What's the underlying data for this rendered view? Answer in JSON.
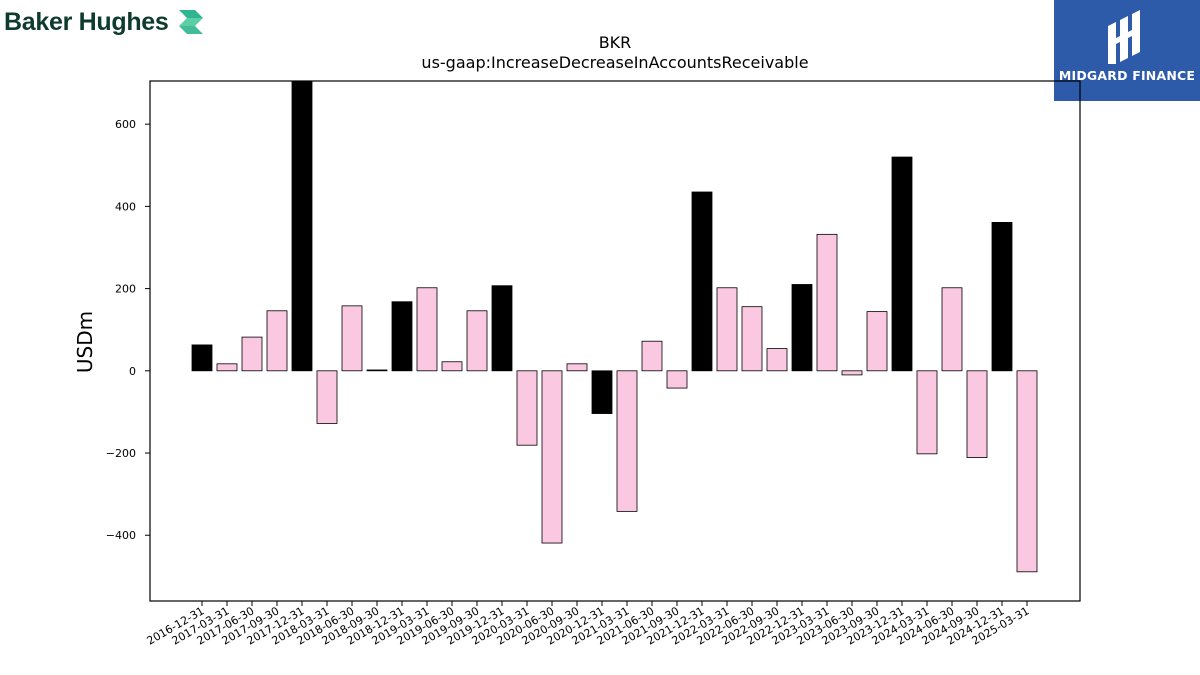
{
  "branding": {
    "company_name": "Baker Hughes",
    "partner_name": "MIDGARD FINANCE"
  },
  "chart_data": {
    "type": "bar",
    "title": "BKR",
    "subtitle": "us-gaap:IncreaseDecreaseInAccountsReceivable",
    "xlabel": "",
    "ylabel": "USDm",
    "ylim": [
      -560,
      705
    ],
    "yticks": [
      -400,
      -200,
      0,
      200,
      400,
      600
    ],
    "ytick_labels": [
      "−400",
      "−200",
      "0",
      "200",
      "400",
      "600"
    ],
    "grid": false,
    "categories": [
      "2016-12-31",
      "2017-03-31",
      "2017-06-30",
      "2017-09-30",
      "2017-12-31",
      "2018-03-31",
      "2018-06-30",
      "2018-09-30",
      "2018-12-31",
      "2019-03-31",
      "2019-06-30",
      "2019-09-30",
      "2019-12-31",
      "2020-03-31",
      "2020-06-30",
      "2020-09-30",
      "2020-12-31",
      "2021-03-31",
      "2021-06-30",
      "2021-09-30",
      "2021-12-31",
      "2022-03-31",
      "2022-06-30",
      "2022-09-30",
      "2022-12-31",
      "2023-03-31",
      "2023-06-30",
      "2023-09-30",
      "2023-12-31",
      "2024-03-31",
      "2024-06-30",
      "2024-09-30",
      "2024-12-31",
      "2025-03-31"
    ],
    "values": [
      63,
      17,
      82,
      146,
      735,
      -128,
      158,
      2,
      168,
      202,
      22,
      146,
      207,
      -181,
      -419,
      17,
      -104,
      -342,
      72,
      -42,
      435,
      202,
      156,
      54,
      210,
      332,
      -10,
      144,
      520,
      -202,
      202,
      -211,
      361,
      -489
    ],
    "colors": {
      "q4": "#000000",
      "other": "#fbc8e2",
      "edge": "#000000"
    }
  }
}
